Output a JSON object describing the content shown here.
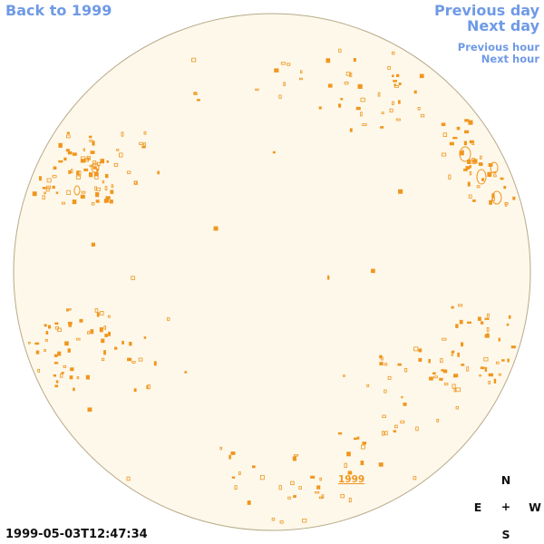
{
  "nav": {
    "back": "Back to 1999",
    "previous_day": "Previous day",
    "next_day": "Next day",
    "previous_hour": "Previous hour",
    "next_hour": "Next hour"
  },
  "timestamp": "1999-05-03T12:47:34",
  "compass": {
    "north": "N",
    "east": "E",
    "center": "+",
    "west": "W",
    "south": "S"
  },
  "year_label": "1999",
  "colors": {
    "link": "#6f9ae6",
    "disk_fill": "#fdf8ea",
    "disk_border": "#b8aa8a",
    "feature": "#f0961e"
  }
}
